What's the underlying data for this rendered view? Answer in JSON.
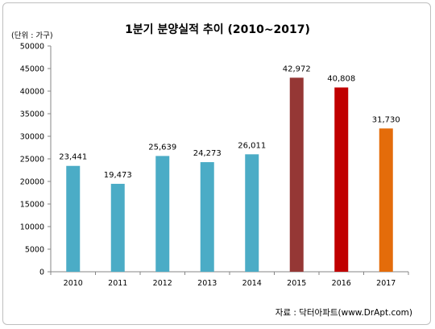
{
  "title": "1분기 분양실적 추이 (2010~2017)",
  "unit_label": "(단위 : 가구)",
  "source": "자료 : 닥터아파트(www.DrApt.com)",
  "chart_data": {
    "type": "bar",
    "title": "1분기 분양실적 추이 (2010~2017)",
    "xlabel": "",
    "ylabel": "",
    "ylim": [
      0,
      50000
    ],
    "yticks": [
      0,
      5000,
      10000,
      15000,
      20000,
      25000,
      30000,
      35000,
      40000,
      45000,
      50000
    ],
    "grid": false,
    "legend": "none",
    "categories": [
      "2010",
      "2011",
      "2012",
      "2013",
      "2014",
      "2015",
      "2016",
      "2017"
    ],
    "values": [
      23441,
      19473,
      25639,
      24273,
      26011,
      42972,
      40808,
      31730
    ],
    "data_labels": [
      "23,441",
      "19,473",
      "25,639",
      "24,273",
      "26,011",
      "42,972",
      "40,808",
      "31,730"
    ],
    "bar_colors": [
      "#4bacc6",
      "#4bacc6",
      "#4bacc6",
      "#4bacc6",
      "#4bacc6",
      "#953735",
      "#c00000",
      "#e46c0a"
    ]
  }
}
